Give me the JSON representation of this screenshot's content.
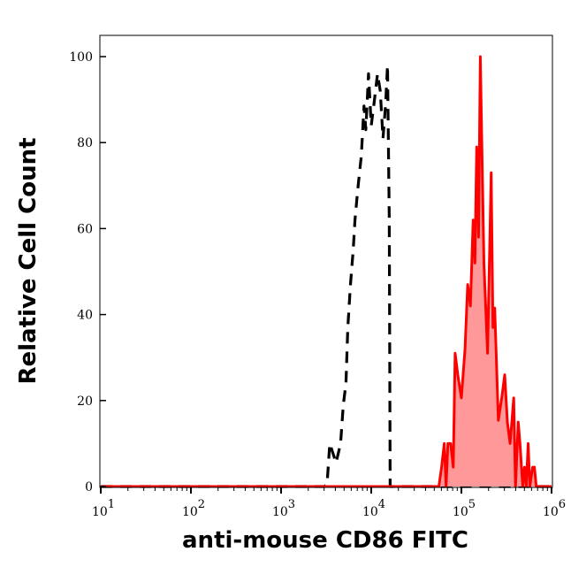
{
  "chart_data": {
    "type": "area",
    "title": "",
    "xlabel": "anti-mouse CD86 FITC",
    "ylabel": "Relative Cell Count",
    "x_scale": "log",
    "xlim": [
      10,
      1000000
    ],
    "ylim": [
      0,
      100
    ],
    "x_ticks": [
      {
        "value": 10,
        "base": "10",
        "exp": "1"
      },
      {
        "value": 100,
        "base": "10",
        "exp": "2"
      },
      {
        "value": 1000,
        "base": "10",
        "exp": "3"
      },
      {
        "value": 10000,
        "base": "10",
        "exp": "4"
      },
      {
        "value": 100000,
        "base": "10",
        "exp": "5"
      },
      {
        "value": 1000000,
        "base": "10",
        "exp": "6"
      }
    ],
    "y_ticks": [
      "0",
      "20",
      "40",
      "60",
      "80",
      "100"
    ],
    "grid": false,
    "series": [
      {
        "style": "dashed-line",
        "color": "#000000",
        "log10_x": [
          1.0,
          3.48,
          3.51,
          3.54,
          3.61,
          3.66,
          3.69,
          3.72,
          3.74,
          3.77,
          3.8,
          3.82,
          3.85,
          3.89,
          3.92,
          3.94,
          3.97,
          4.0,
          4.03,
          4.07,
          4.1,
          4.13,
          4.16,
          4.18,
          4.2,
          4.21,
          6.0
        ],
        "y": [
          0,
          0,
          0.5,
          10,
          5.5,
          10,
          19,
          24,
          37,
          47,
          55,
          62,
          69,
          77,
          88.5,
          83,
          96,
          84,
          89,
          96,
          92,
          81,
          89,
          98,
          62,
          0,
          0
        ]
      },
      {
        "style": "filled-line",
        "color": "#ff0000",
        "fill": "#ff9999",
        "log10_x": [
          1.0,
          4.75,
          4.78,
          4.81,
          4.83,
          4.85,
          4.88,
          4.91,
          4.93,
          4.96,
          5.0,
          5.04,
          5.07,
          5.1,
          5.13,
          5.15,
          5.17,
          5.19,
          5.21,
          5.25,
          5.29,
          5.33,
          5.35,
          5.37,
          5.41,
          5.45,
          5.48,
          5.51,
          5.54,
          5.58,
          5.6,
          5.63,
          5.65,
          5.68,
          5.7,
          5.72,
          5.74,
          5.76,
          5.79,
          5.81,
          5.83,
          6.0
        ],
        "y": [
          0,
          0,
          4.5,
          10,
          0,
          10,
          10,
          4.5,
          31,
          26,
          20.6,
          32,
          47,
          42,
          62,
          52,
          79,
          58,
          100,
          52,
          31,
          73,
          37,
          41.5,
          15.4,
          21,
          26,
          15,
          10,
          20.6,
          0,
          15,
          10,
          0,
          4.5,
          0,
          10,
          0,
          4.5,
          4.5,
          0,
          0
        ]
      }
    ]
  }
}
